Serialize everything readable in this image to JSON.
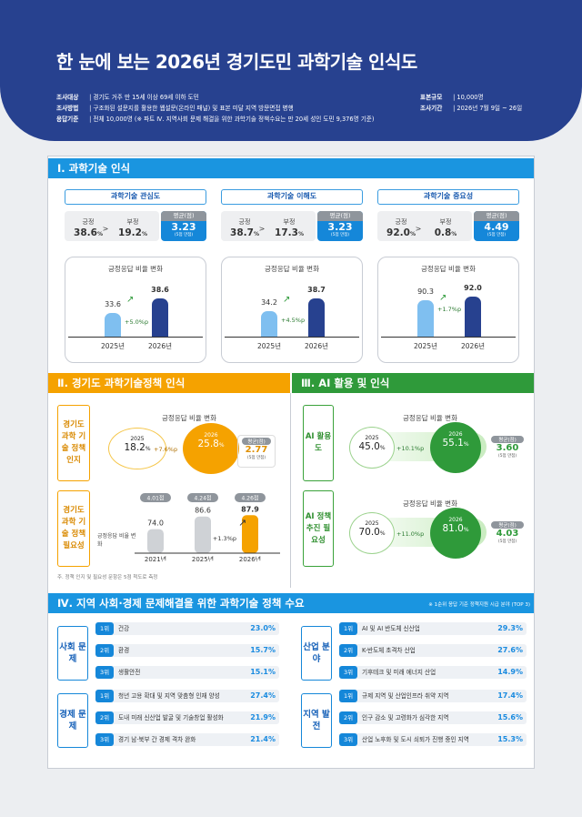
{
  "title": "한 눈에 보는 2026년 경기도민 과학기술 인식도",
  "meta": {
    "target_k": "조사대상",
    "target_v": "경기도 거주 만 15세 이상 69세 이하 도민",
    "method_k": "조사방법",
    "method_v": "구조화된 설문지를 활용한 웹설문(온라인 패널) 및 표본 미달 지역 방문면접 병행",
    "base_k": "응답기준",
    "base_v": "전체 10,000명 (※ 파트 Ⅳ. 지역사회 문제 해결을 위한 과학기술 정책수요는 만 20세 성인 도민 9,376명 기준)",
    "size_k": "표본규모",
    "size_v": "10,000명",
    "period_k": "조사기간",
    "period_v": "2026년 7월 9일 ~ 26일"
  },
  "s1": {
    "title": "Ⅰ. 과학기술 인식",
    "pos_label": "긍정",
    "neg_label": "부정",
    "avg_label": "평균(점)",
    "avg_sub": "(5점 만점)",
    "chart_title": "긍정응답 비율 변화",
    "y1": "2025년",
    "y2": "2026년",
    "items": [
      {
        "name": "과학기술 관심도",
        "pos": "38.6",
        "neg": "19.2",
        "avg": "3.23",
        "v1": "33.6",
        "v2": "38.6",
        "delta": "+5.0%p"
      },
      {
        "name": "과학기술 이해도",
        "pos": "38.7",
        "neg": "17.3",
        "avg": "3.23",
        "v1": "34.2",
        "v2": "38.7",
        "delta": "+4.5%p"
      },
      {
        "name": "과학기술 중요성",
        "pos": "92.0",
        "neg": "0.8",
        "avg": "4.49",
        "v1": "90.3",
        "v2": "92.0",
        "delta": "+1.7%p"
      }
    ]
  },
  "s2": {
    "title": "Ⅱ. 경기도 과학기술정책 인식",
    "chart_title": "긍정응답 비율 변화",
    "label1": "경기도 과학 기술 정책 인지",
    "c1_year": "2025",
    "c1_val": "18.2",
    "c2_year": "2026",
    "c2_val": "25.8",
    "delta": "+7.6%p",
    "avg_label": "평균(점)",
    "avg": "2.77",
    "avg_sub": "(5점 만점)",
    "label2": "경기도 과학 기술 정책 필요성",
    "bar_label": "긍정응답 비율 변화",
    "bars": [
      {
        "year": "2021년",
        "score": "4.01점",
        "value": "74.0"
      },
      {
        "year": "2025년",
        "score": "4.24점",
        "value": "86.6"
      },
      {
        "year": "2026년",
        "score": "4.26점",
        "value": "87.9"
      }
    ],
    "bar_delta": "+1.3%p",
    "note": "주. 정책 인지 및 필요성 문항은 5점 척도로 측정"
  },
  "s3": {
    "title": "Ⅲ. AI 활용 및 인식",
    "chart_title": "긍정응답 비율 변화",
    "avg_label": "평균(점)",
    "avg_sub": "(5점 만점)",
    "items": [
      {
        "label": "AI 활용도",
        "y1": "2025",
        "v1": "45.0",
        "y2": "2026",
        "v2": "55.1",
        "delta": "+10.1%p",
        "avg": "3.60"
      },
      {
        "label": "AI 정책 추진 필요성",
        "y1": "2025",
        "v1": "70.0",
        "y2": "2026",
        "v2": "81.0",
        "delta": "+11.0%p",
        "avg": "4.03"
      }
    ]
  },
  "s4": {
    "title": "Ⅳ. 지역 사회·경제 문제해결을 위한 과학기술 정책 수요",
    "note": "※ 1순위 응답 기준 정책지원 시급 분야 (TOP 3)",
    "groups": [
      {
        "label": "사회 문제",
        "rows": [
          {
            "rank": "1위",
            "text": "건강",
            "val": "23.0%"
          },
          {
            "rank": "2위",
            "text": "환경",
            "val": "15.7%"
          },
          {
            "rank": "3위",
            "text": "생활안전",
            "val": "15.1%"
          }
        ]
      },
      {
        "label": "산업 분야",
        "rows": [
          {
            "rank": "1위",
            "text": "AI 및 AI 반도체 신산업",
            "val": "29.3%"
          },
          {
            "rank": "2위",
            "text": "K-반도체 초격차 산업",
            "val": "27.6%"
          },
          {
            "rank": "3위",
            "text": "기후테크 및 미래 에너지 산업",
            "val": "14.9%"
          }
        ]
      },
      {
        "label": "경제 문제",
        "rows": [
          {
            "rank": "1위",
            "text": "청년 고용 확대 및 지역 맞춤형 인재 양성",
            "val": "27.4%"
          },
          {
            "rank": "2위",
            "text": "도내 미래 신산업 발굴 및 기술창업 활성화",
            "val": "21.9%"
          },
          {
            "rank": "3위",
            "text": "경기 남·북부 간 경제 격차 완화",
            "val": "21.4%"
          }
        ]
      },
      {
        "label": "지역 발전",
        "rows": [
          {
            "rank": "1위",
            "text": "규제 지역 및 산업인프라 취약 지역",
            "val": "17.4%"
          },
          {
            "rank": "2위",
            "text": "인구 감소 및 고령화가 심각한 지역",
            "val": "15.6%"
          },
          {
            "rank": "3위",
            "text": "산업 노후화 및 도시 쇠퇴가 진행 중인 지역",
            "val": "15.3%"
          }
        ]
      }
    ]
  }
}
